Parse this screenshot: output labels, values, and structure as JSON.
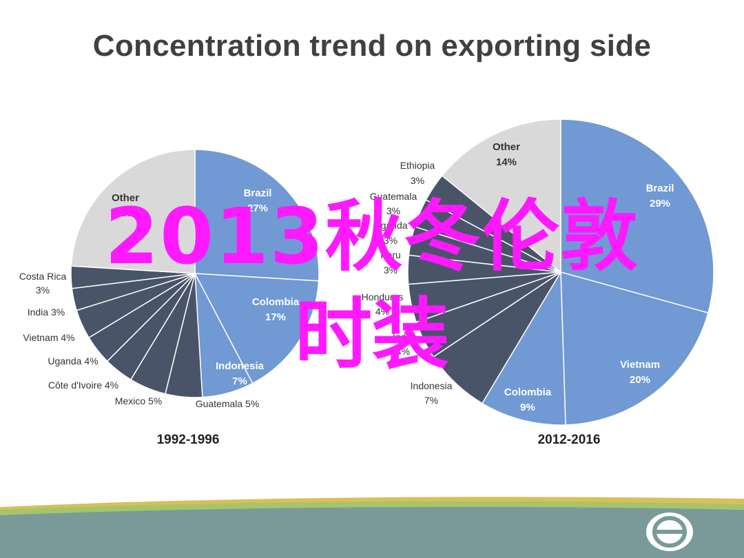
{
  "slide": {
    "title": "Concentration trend on exporting side",
    "watermark_line1": "2013秋冬伦敦",
    "watermark_line2": "时装"
  },
  "colors": {
    "brazil": "#7199d3",
    "other": "#d9d9d9",
    "dark_slice": "#4a5469",
    "watermark": "#ff19ff",
    "footer_teal": "#7a9a99",
    "footer_green": "#a6c46a",
    "footer_gold": "#d9bf5a"
  },
  "chart_data": [
    {
      "type": "pie",
      "title": "1992-1996",
      "slices": [
        {
          "label": "Brazil",
          "value": 27,
          "color": "#7199d3"
        },
        {
          "label": "Colombia",
          "value": 17,
          "color": "#7199d3"
        },
        {
          "label": "Indonesia",
          "value": 7,
          "color": "#7199d3"
        },
        {
          "label": "Guatemala",
          "value": 5,
          "color": "#4a5469"
        },
        {
          "label": "Mexico",
          "value": 5,
          "color": "#4a5469"
        },
        {
          "label": "Côte d'Ivoire",
          "value": 4,
          "color": "#4a5469"
        },
        {
          "label": "Uganda",
          "value": 4,
          "color": "#4a5469"
        },
        {
          "label": "Vietnam",
          "value": 4,
          "color": "#4a5469"
        },
        {
          "label": "India",
          "value": 3,
          "color": "#4a5469"
        },
        {
          "label": "Costa Rica",
          "value": 3,
          "color": "#4a5469"
        },
        {
          "label": "Other",
          "value": 25,
          "color": "#d9d9d9"
        }
      ],
      "labels_text": {
        "brazil": "Brazil",
        "brazil_pct": "27%",
        "colombia": "Colombia",
        "colombia_pct": "17%",
        "indonesia": "Indonesia",
        "indonesia_pct": "7%",
        "guatemala": "Guatemala 5%",
        "mexico": "Mexico 5%",
        "cote": "Côte d'Ivoire 4%",
        "uganda": "Uganda 4%",
        "vietnam": "Vietnam 4%",
        "india": "India 3%",
        "costa": "Costa Rica",
        "costa_pct": "3%",
        "other": "Other",
        "other_pct": "25%"
      }
    },
    {
      "type": "pie",
      "title": "2012-2016",
      "slices": [
        {
          "label": "Brazil",
          "value": 29,
          "color": "#7199d3"
        },
        {
          "label": "Vietnam",
          "value": 20,
          "color": "#7199d3"
        },
        {
          "label": "Colombia",
          "value": 9,
          "color": "#7199d3"
        },
        {
          "label": "Indonesia",
          "value": 7,
          "color": "#4a5469"
        },
        {
          "label": "India",
          "value": 4,
          "color": "#4a5469"
        },
        {
          "label": "Honduras",
          "value": 4,
          "color": "#4a5469"
        },
        {
          "label": "Peru",
          "value": 3,
          "color": "#4a5469"
        },
        {
          "label": "Uganda",
          "value": 3,
          "color": "#4a5469"
        },
        {
          "label": "Guatemala",
          "value": 3,
          "color": "#4a5469"
        },
        {
          "label": "Ethiopia",
          "value": 3,
          "color": "#4a5469"
        },
        {
          "label": "Other",
          "value": 14,
          "color": "#d9d9d9"
        }
      ],
      "labels_text": {
        "brazil": "Brazil",
        "brazil_pct": "29%",
        "vietnam": "Vietnam",
        "vietnam_pct": "20%",
        "colombia": "Colombia",
        "colombia_pct": "9%",
        "indonesia": "Indonesia",
        "indonesia_pct": "7%",
        "india": "India",
        "india_pct": "4%",
        "honduras": "Honduras",
        "honduras_pct": "4%",
        "peru": "Peru",
        "peru_pct": "3%",
        "uganda": "Uganda",
        "uganda_pct": "3%",
        "guatemala": "Guatemala",
        "guatemala_pct": "3%",
        "ethiopia": "Ethiopia",
        "ethiopia_pct": "3%",
        "other": "Other",
        "other_pct": "14%"
      }
    }
  ]
}
